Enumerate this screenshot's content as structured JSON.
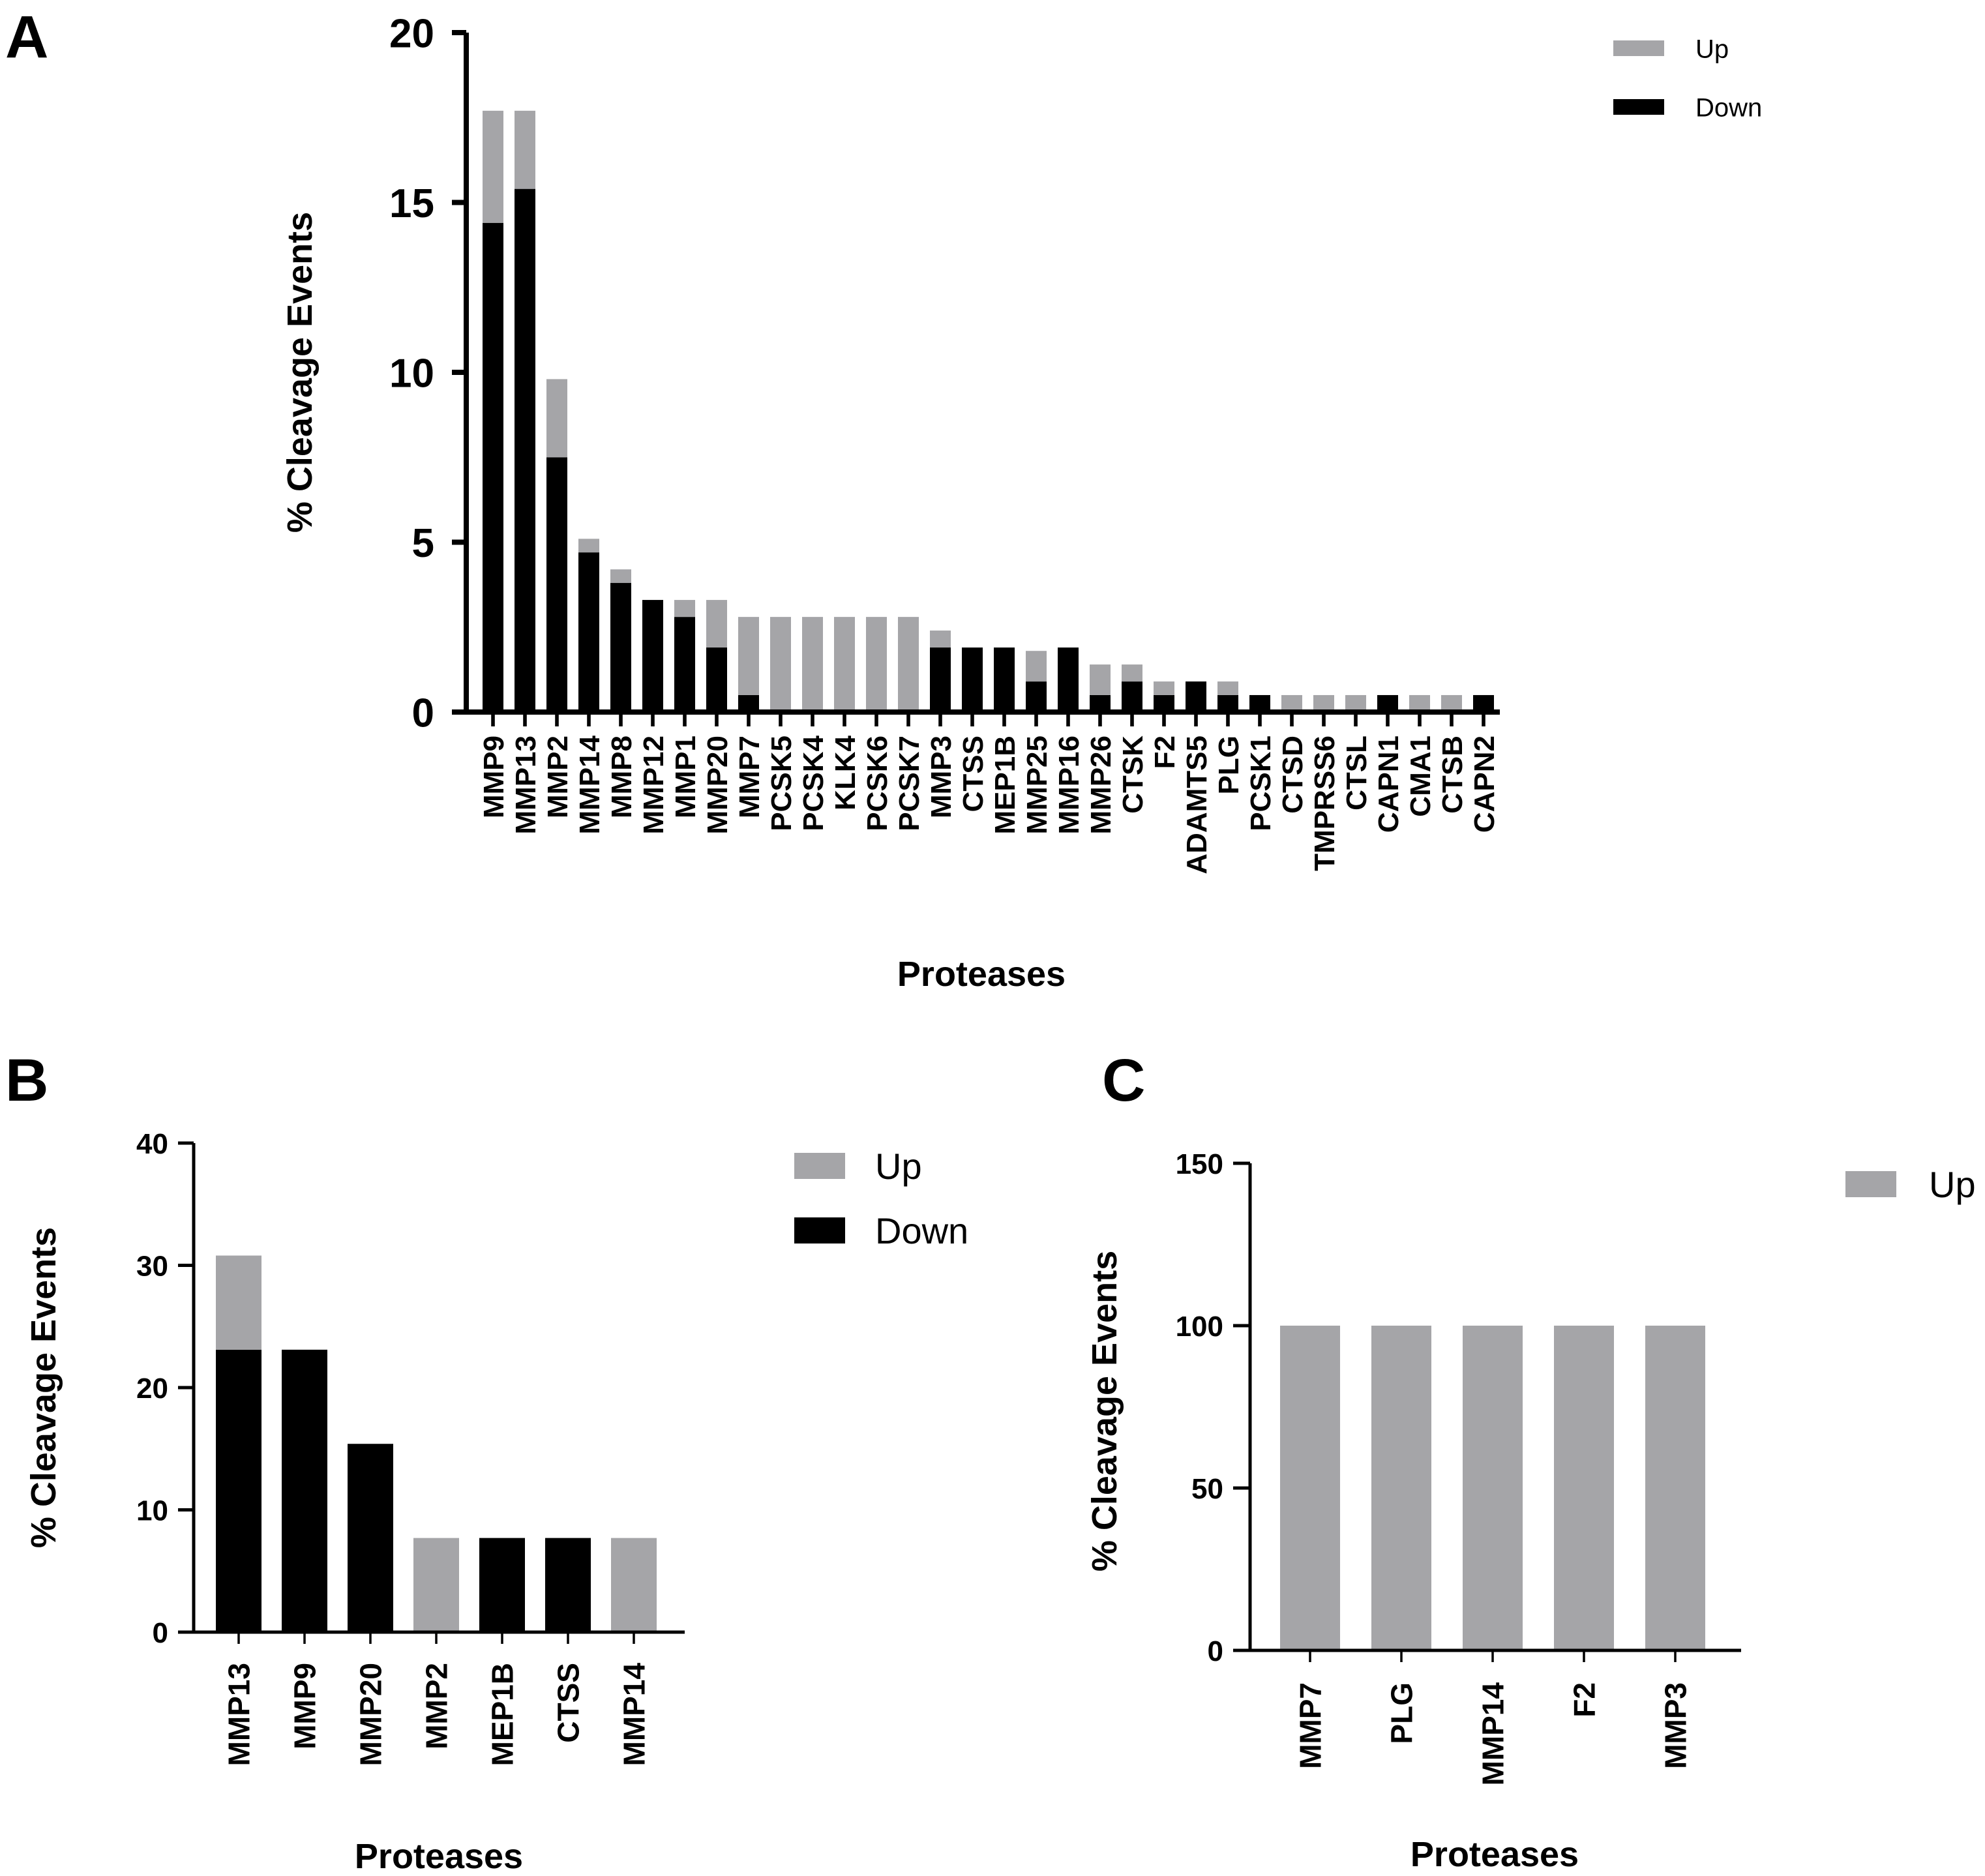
{
  "colors": {
    "up": "#a5a5a8",
    "down": "#000000",
    "axis": "#000000"
  },
  "chart_data": [
    {
      "panel": "A",
      "type": "bar",
      "stacked": true,
      "xlabel": "Proteases",
      "ylabel": "% Cleavage Events",
      "ylim": [
        0,
        20
      ],
      "yticks": [
        0,
        5,
        10,
        15,
        20
      ],
      "legend": {
        "placement": "top-right",
        "entries": [
          "Up",
          "Down"
        ]
      },
      "categories": [
        "MMP9",
        "MMP13",
        "MMP2",
        "MMP14",
        "MMP8",
        "MMP12",
        "MMP1",
        "MMP20",
        "MMP7",
        "PCSK5",
        "PCSK4",
        "KLK4",
        "PCSK6",
        "PCSK7",
        "MMP3",
        "CTSS",
        "MEP1B",
        "MMP25",
        "MMP16",
        "MMP26",
        "CTSK",
        "F2",
        "ADAMTS5",
        "PLG",
        "PCSK1",
        "CTSD",
        "TMPRSS6",
        "CTSL",
        "CAPN1",
        "CMA1",
        "CTSB",
        "CAPN2"
      ],
      "series": [
        {
          "name": "Down",
          "values": [
            14.4,
            15.4,
            7.5,
            4.7,
            3.8,
            3.3,
            2.8,
            1.9,
            0.5,
            0,
            0,
            0,
            0,
            0,
            1.9,
            1.9,
            1.9,
            0.9,
            1.9,
            0.5,
            0.9,
            0.5,
            0.9,
            0.5,
            0.5,
            0,
            0,
            0,
            0.5,
            0,
            0,
            0.5
          ]
        },
        {
          "name": "Up",
          "values": [
            3.3,
            2.3,
            2.3,
            0.4,
            0.4,
            0,
            0.5,
            1.4,
            2.3,
            2.8,
            2.8,
            2.8,
            2.8,
            2.8,
            0.5,
            0,
            0,
            0.9,
            0,
            0.9,
            0.5,
            0.4,
            0,
            0.4,
            0,
            0.5,
            0.5,
            0.5,
            0,
            0.5,
            0.5,
            0
          ]
        }
      ]
    },
    {
      "panel": "B",
      "type": "bar",
      "stacked": true,
      "xlabel": "Proteases",
      "ylabel": "% Cleavage Events",
      "ylim": [
        0,
        40
      ],
      "yticks": [
        0,
        10,
        20,
        30,
        40
      ],
      "legend": {
        "placement": "top-right",
        "entries": [
          "Up",
          "Down"
        ]
      },
      "categories": [
        "MMP13",
        "MMP9",
        "MMP20",
        "MMP2",
        "MEP1B",
        "CTSS",
        "MMP14"
      ],
      "series": [
        {
          "name": "Down",
          "values": [
            23.1,
            23.1,
            15.4,
            0,
            7.7,
            7.7,
            0
          ]
        },
        {
          "name": "Up",
          "values": [
            7.7,
            0,
            0,
            7.7,
            0,
            0,
            7.7
          ]
        }
      ]
    },
    {
      "panel": "C",
      "type": "bar",
      "stacked": true,
      "xlabel": "Proteases",
      "ylabel": "% Cleavage Events",
      "ylim": [
        0,
        150
      ],
      "yticks": [
        0,
        50,
        100,
        150
      ],
      "legend": {
        "placement": "top-right",
        "entries": [
          "Up"
        ]
      },
      "categories": [
        "MMP7",
        "PLG",
        "MMP14",
        "F2",
        "MMP3"
      ],
      "series": [
        {
          "name": "Up",
          "values": [
            100,
            100,
            100,
            100,
            100
          ]
        }
      ]
    }
  ]
}
